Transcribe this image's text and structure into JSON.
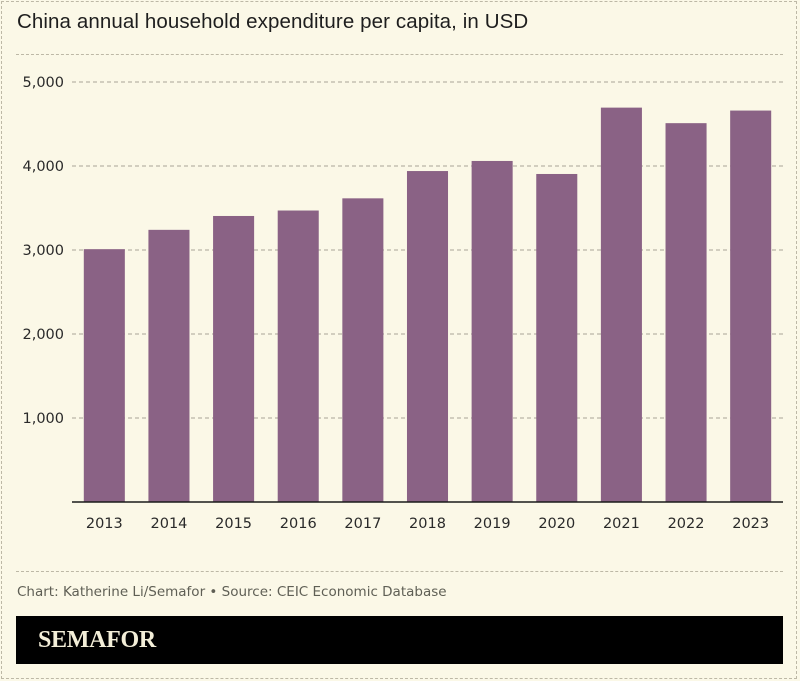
{
  "chart_data": {
    "type": "bar",
    "title": "China annual household expenditure per capita, in USD",
    "xlabel": "",
    "ylabel": "",
    "categories": [
      "2013",
      "2014",
      "2015",
      "2016",
      "2017",
      "2018",
      "2019",
      "2020",
      "2021",
      "2022",
      "2023"
    ],
    "values": [
      3010,
      3240,
      3405,
      3470,
      3615,
      3940,
      4060,
      3905,
      4695,
      4510,
      4660
    ],
    "ylim": [
      0,
      5000
    ],
    "yticks": [
      1000,
      2000,
      3000,
      4000,
      5000
    ],
    "ytick_labels": [
      "1,000",
      "2,000",
      "3,000",
      "4,000",
      "5,000"
    ],
    "grid": true,
    "bar_color": "#8a6285",
    "legend": null
  },
  "footer": {
    "source": "Chart: Katherine Li/Semafor • Source: CEIC Economic Database",
    "brand": "SEMAFOR"
  }
}
